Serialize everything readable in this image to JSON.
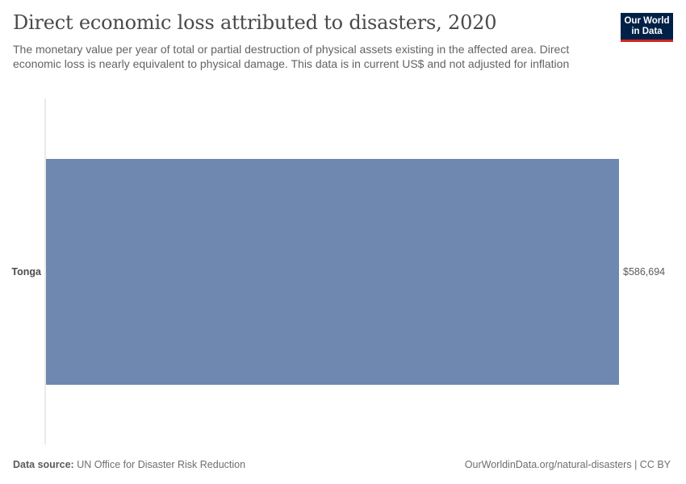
{
  "header": {
    "title": "Direct economic loss attributed to disasters, 2020",
    "subtitle": "The monetary value per year of total or partial destruction of physical assets existing in the affected area. Direct economic loss is nearly equivalent to physical damage. This data is in current US$ and not adjusted for inflation",
    "logo_line1": "Our World",
    "logo_line2": "in Data"
  },
  "footer": {
    "source_label": "Data source:",
    "source_text": " UN Office for Disaster Risk Reduction",
    "link": "OurWorldinData.org/natural-disasters | CC BY"
  },
  "colors": {
    "bar": "#6f88b0",
    "axis": "#d6d6d6",
    "logo_bg": "#002147",
    "logo_accent": "#ce261e"
  },
  "chart_data": {
    "type": "bar",
    "orientation": "horizontal",
    "categories": [
      "Tonga"
    ],
    "values": [
      586694
    ],
    "value_labels": [
      "$586,694"
    ],
    "xlim": [
      0,
      586694
    ],
    "grid": false
  }
}
